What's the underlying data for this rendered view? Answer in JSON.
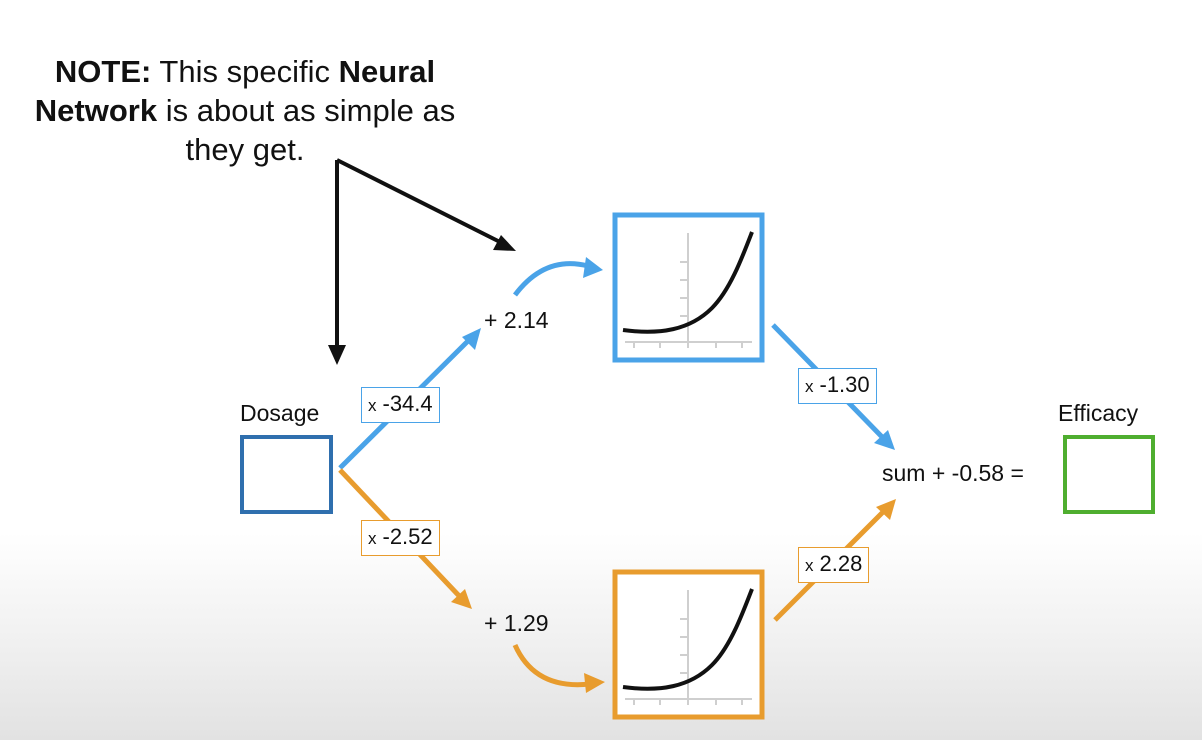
{
  "note": {
    "bold1": "NOTE:",
    "text1": " This specific ",
    "bold2": "Neural",
    "bold3": "Network",
    "text2": " is about as simple as",
    "text3": "they get."
  },
  "input": {
    "label": "Dosage"
  },
  "output": {
    "label": "Efficacy"
  },
  "top_path": {
    "weight_in": "-34.4",
    "bias": "+ 2.14",
    "weight_out": "-1.30"
  },
  "bottom_path": {
    "weight_in": "-2.52",
    "bias": "+ 1.29",
    "weight_out": "2.28"
  },
  "weight_prefix": "x",
  "sum_label": "sum + -0.58 =",
  "colors": {
    "top": "#4aa3e8",
    "bottom": "#e89c2e",
    "input_box": "#2f6fae",
    "output_box": "#4fae2f",
    "note_arrow": "#111111"
  }
}
